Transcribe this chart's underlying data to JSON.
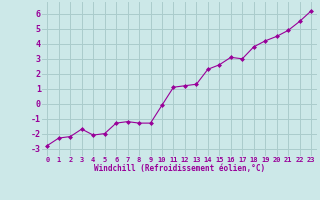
{
  "x": [
    0,
    1,
    2,
    3,
    4,
    5,
    6,
    7,
    8,
    9,
    10,
    11,
    12,
    13,
    14,
    15,
    16,
    17,
    18,
    19,
    20,
    21,
    22,
    23
  ],
  "y": [
    -2.8,
    -2.3,
    -2.2,
    -1.7,
    -2.1,
    -2.0,
    -1.3,
    -1.2,
    -1.3,
    -1.3,
    -0.1,
    1.1,
    1.2,
    1.3,
    2.3,
    2.6,
    3.1,
    3.0,
    3.8,
    4.2,
    4.5,
    4.9,
    5.5,
    6.2
  ],
  "line_color": "#990099",
  "marker": "D",
  "markersize": 2.0,
  "bg_color": "#cce8e8",
  "grid_color": "#aacccc",
  "xlabel": "Windchill (Refroidissement éolien,°C)",
  "xlabel_color": "#990099",
  "tick_color": "#990099",
  "ylim": [
    -3.5,
    6.8
  ],
  "xlim": [
    -0.5,
    23.5
  ],
  "yticks": [
    -3,
    -2,
    -1,
    0,
    1,
    2,
    3,
    4,
    5,
    6
  ],
  "xticks": [
    0,
    1,
    2,
    3,
    4,
    5,
    6,
    7,
    8,
    9,
    10,
    11,
    12,
    13,
    14,
    15,
    16,
    17,
    18,
    19,
    20,
    21,
    22,
    23
  ]
}
